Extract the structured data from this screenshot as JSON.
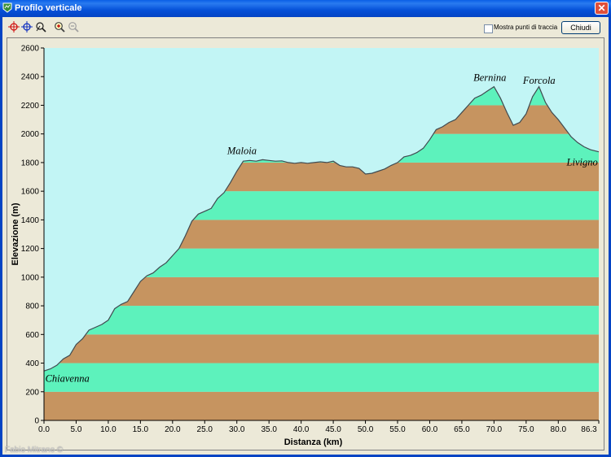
{
  "window": {
    "title": "Profilo verticale",
    "close_symbol": "✕"
  },
  "toolbar": {
    "tools": [
      "crosshair-red-icon",
      "crosshair-blue-icon",
      "measure-icon",
      "zoom-in-icon",
      "zoom-out-icon"
    ],
    "checkbox_label": "Mostra punti di traccia",
    "close_button": "Chiudi"
  },
  "credit": "Fabio Mitrano ©",
  "colors": {
    "sky": "#c2f5f5",
    "band_green": "#5df2bc",
    "band_brown": "#c69460",
    "line": "#404a50"
  },
  "chart_data": {
    "type": "area",
    "xlabel": "Distanza  (km)",
    "ylabel": "Elevazione (m)",
    "xlim": [
      0,
      86.3
    ],
    "ylim": [
      0,
      2600
    ],
    "x_ticks": [
      "0.0",
      "5.0",
      "10.0",
      "15.0",
      "20.0",
      "25.0",
      "30.0",
      "35.0",
      "40.0",
      "45.0",
      "50.0",
      "55.0",
      "60.0",
      "65.0",
      "70.0",
      "75.0",
      "80.0",
      "86.3"
    ],
    "x_tick_values": [
      0,
      5,
      10,
      15,
      20,
      25,
      30,
      35,
      40,
      45,
      50,
      55,
      60,
      65,
      70,
      75,
      80,
      86.3
    ],
    "y_ticks": [
      0,
      200,
      400,
      600,
      800,
      1000,
      1200,
      1400,
      1600,
      1800,
      2000,
      2200,
      2400,
      2600
    ],
    "band_step": 200,
    "grid": false,
    "profile": [
      [
        0,
        345
      ],
      [
        1,
        360
      ],
      [
        2,
        385
      ],
      [
        3,
        430
      ],
      [
        4,
        455
      ],
      [
        5,
        530
      ],
      [
        6,
        570
      ],
      [
        7,
        630
      ],
      [
        8,
        650
      ],
      [
        9,
        670
      ],
      [
        10,
        700
      ],
      [
        11,
        780
      ],
      [
        12,
        810
      ],
      [
        13,
        830
      ],
      [
        14,
        900
      ],
      [
        15,
        970
      ],
      [
        16,
        1010
      ],
      [
        17,
        1030
      ],
      [
        18,
        1070
      ],
      [
        19,
        1100
      ],
      [
        20,
        1150
      ],
      [
        21,
        1200
      ],
      [
        22,
        1290
      ],
      [
        23,
        1390
      ],
      [
        24,
        1440
      ],
      [
        25,
        1460
      ],
      [
        26,
        1480
      ],
      [
        27,
        1550
      ],
      [
        28,
        1590
      ],
      [
        29,
        1660
      ],
      [
        30,
        1740
      ],
      [
        31,
        1810
      ],
      [
        32,
        1815
      ],
      [
        33,
        1810
      ],
      [
        34,
        1820
      ],
      [
        35,
        1815
      ],
      [
        36,
        1810
      ],
      [
        37,
        1812
      ],
      [
        38,
        1800
      ],
      [
        39,
        1795
      ],
      [
        40,
        1800
      ],
      [
        41,
        1795
      ],
      [
        42,
        1800
      ],
      [
        43,
        1805
      ],
      [
        44,
        1800
      ],
      [
        45,
        1810
      ],
      [
        46,
        1780
      ],
      [
        47,
        1770
      ],
      [
        48,
        1770
      ],
      [
        49,
        1760
      ],
      [
        50,
        1720
      ],
      [
        51,
        1725
      ],
      [
        52,
        1740
      ],
      [
        53,
        1755
      ],
      [
        54,
        1780
      ],
      [
        55,
        1800
      ],
      [
        56,
        1840
      ],
      [
        57,
        1850
      ],
      [
        58,
        1870
      ],
      [
        59,
        1900
      ],
      [
        60,
        1960
      ],
      [
        61,
        2030
      ],
      [
        62,
        2050
      ],
      [
        63,
        2080
      ],
      [
        64,
        2100
      ],
      [
        65,
        2150
      ],
      [
        66,
        2200
      ],
      [
        67,
        2250
      ],
      [
        68,
        2270
      ],
      [
        69,
        2300
      ],
      [
        70,
        2330
      ],
      [
        71,
        2250
      ],
      [
        72,
        2150
      ],
      [
        73,
        2060
      ],
      [
        74,
        2080
      ],
      [
        75,
        2140
      ],
      [
        76,
        2260
      ],
      [
        77,
        2330
      ],
      [
        78,
        2220
      ],
      [
        79,
        2150
      ],
      [
        80,
        2100
      ],
      [
        81,
        2040
      ],
      [
        82,
        1980
      ],
      [
        83,
        1940
      ],
      [
        84,
        1910
      ],
      [
        85,
        1890
      ],
      [
        86.3,
        1875
      ]
    ],
    "annotations": [
      {
        "text": "Chiavenna",
        "x": 0.2,
        "y": 270
      },
      {
        "text": "Maloia",
        "x": 28.5,
        "y": 1860
      },
      {
        "text": "Bernina",
        "x": 66.8,
        "y": 2370
      },
      {
        "text": "Forcola",
        "x": 74.5,
        "y": 2350
      },
      {
        "text": "Livigno",
        "x": 81.3,
        "y": 1780
      }
    ]
  }
}
